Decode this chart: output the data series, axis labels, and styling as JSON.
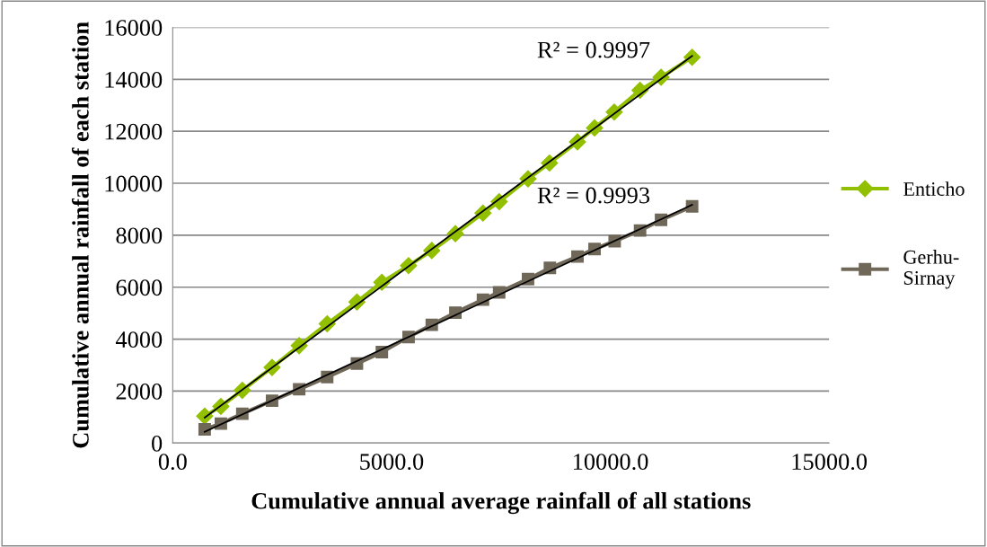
{
  "chart_data": {
    "type": "line",
    "xlabel": "Cumulative annual average rainfall of all stations",
    "ylabel": "Cumulative annual rainfall of each station",
    "xlim": [
      0,
      15000
    ],
    "xticks": [
      {
        "value": 0,
        "label": "0.0"
      },
      {
        "value": 5000,
        "label": "5000.0"
      },
      {
        "value": 10000,
        "label": "10000.0"
      },
      {
        "value": 15000,
        "label": "15000.0"
      }
    ],
    "ylim": [
      0,
      16000
    ],
    "yticks": [
      0,
      2000,
      4000,
      6000,
      8000,
      10000,
      12000,
      14000,
      16000
    ],
    "grid": "y",
    "legend": "right",
    "series": [
      {
        "name": "Enticho",
        "color": "#92c000",
        "marker": "diamond",
        "x": [
          730,
          1100,
          1590,
          2270,
          2890,
          3530,
          4210,
          4780,
          5390,
          5920,
          6460,
          7090,
          7460,
          8120,
          8610,
          9250,
          9640,
          10090,
          10680,
          11160,
          11870
        ],
        "values": [
          1040,
          1410,
          2030,
          2910,
          3750,
          4590,
          5430,
          6190,
          6830,
          7410,
          8060,
          8850,
          9290,
          10170,
          10780,
          11590,
          12130,
          12740,
          13580,
          14080,
          14850
        ]
      },
      {
        "name": "Gerhu-Sirnay",
        "color": "#6f6758",
        "marker": "square",
        "x": [
          730,
          1100,
          1590,
          2270,
          2890,
          3530,
          4210,
          4780,
          5390,
          5920,
          6460,
          7090,
          7460,
          8120,
          8620,
          9250,
          9640,
          10100,
          10680,
          11160,
          11870
        ],
        "values": [
          530,
          750,
          1130,
          1630,
          2070,
          2540,
          3060,
          3500,
          4080,
          4550,
          5020,
          5520,
          5800,
          6310,
          6740,
          7180,
          7470,
          7770,
          8180,
          8590,
          9110
        ]
      },
      {
        "color": "#000000",
        "marker": "none",
        "x": [
          730,
          11870
        ],
        "values": [
          980,
          14900
        ]
      },
      {
        "color": "#000000",
        "marker": "none",
        "x": [
          730,
          11870
        ],
        "values": [
          430,
          9170
        ]
      }
    ],
    "annotations": [
      "R² = 0.9997",
      "R² = 0.9993"
    ]
  }
}
